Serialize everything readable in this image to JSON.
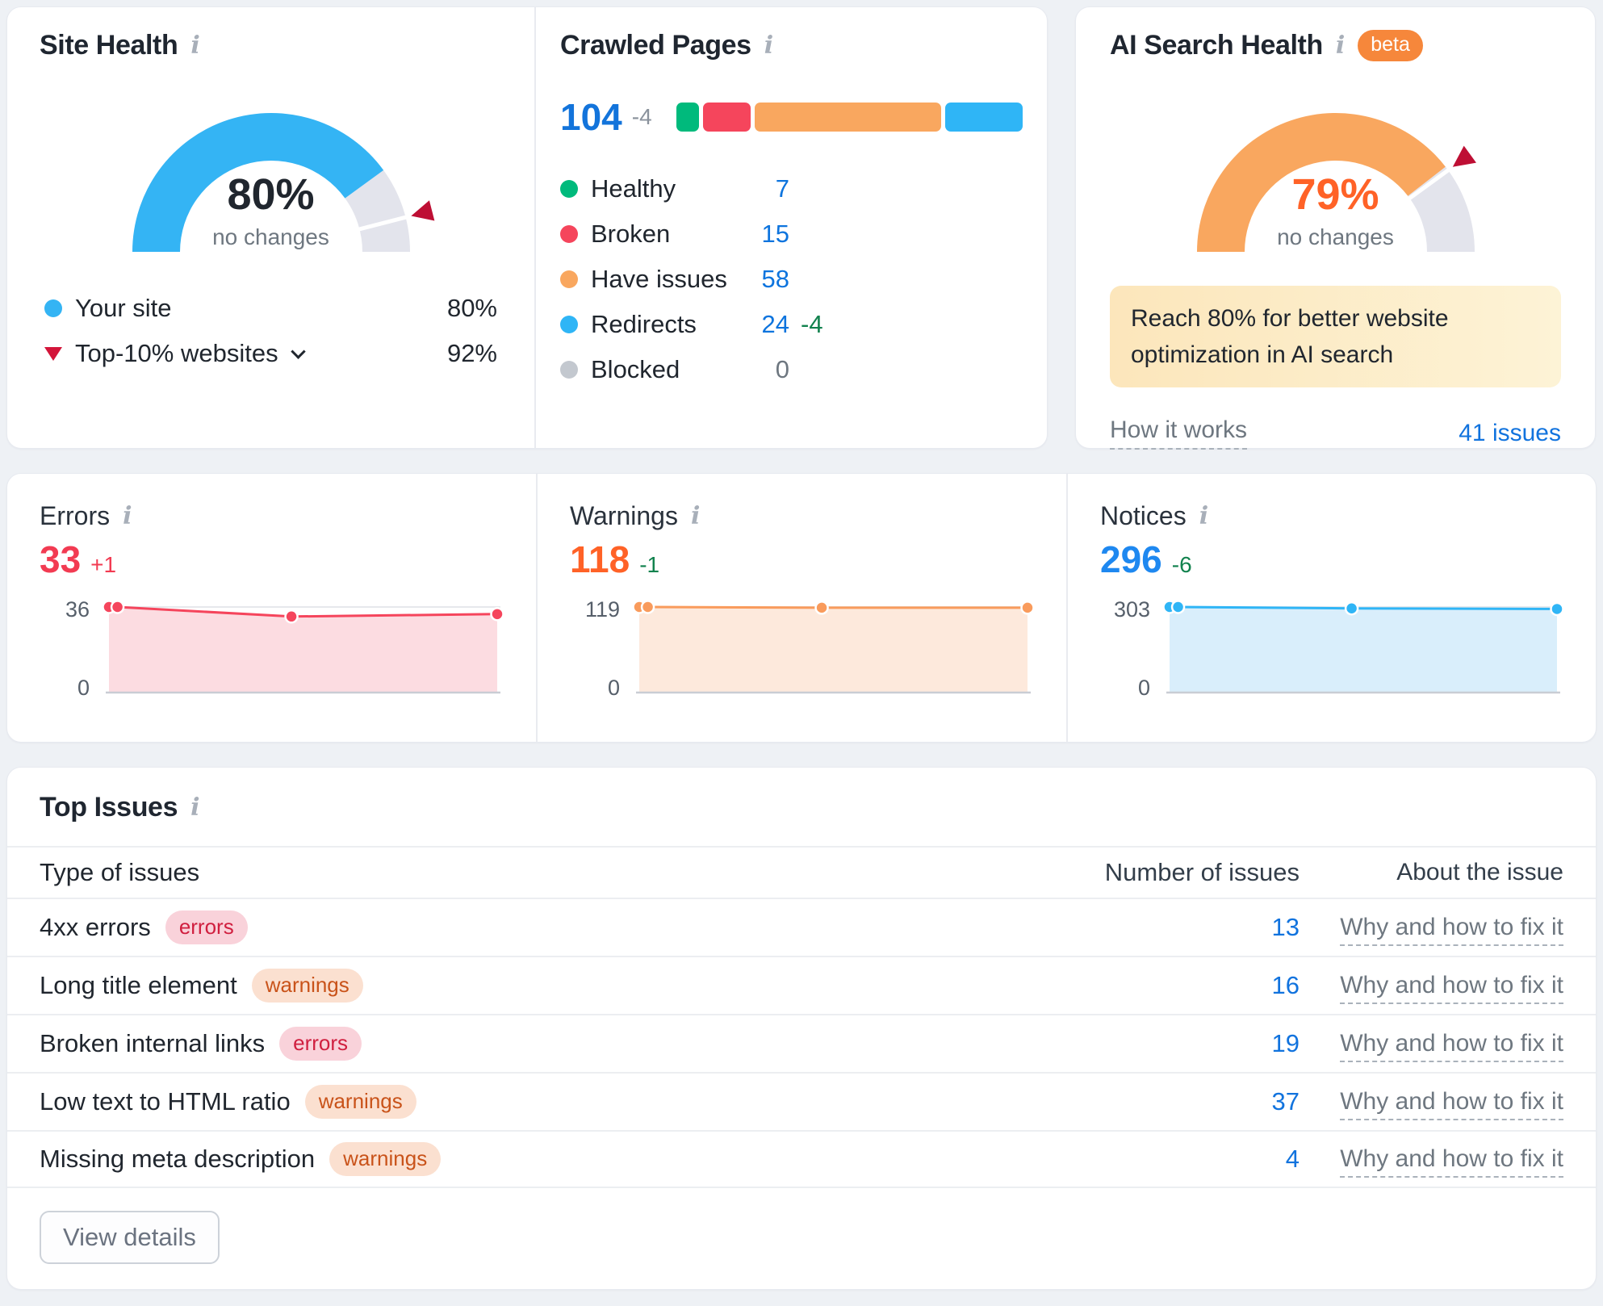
{
  "site_health": {
    "title": "Site Health",
    "score": "80%",
    "change": "no changes",
    "gauge": {
      "value": 80,
      "benchmark": 92,
      "color": "#34B4F4",
      "track": "#E3E4EC",
      "marker_color": "#BE0F34"
    },
    "legend": [
      {
        "label": "Your site",
        "value": "80%"
      },
      {
        "label": "Top-10% websites",
        "value": "92%"
      }
    ]
  },
  "crawled_pages": {
    "title": "Crawled Pages",
    "total": "104",
    "delta": "-4",
    "bar": [
      {
        "name": "Healthy",
        "value": 7,
        "color": "#00BA7C"
      },
      {
        "name": "Broken",
        "value": 15,
        "color": "#F5455C"
      },
      {
        "name": "Have issues",
        "value": 58,
        "color": "#F9A75F"
      },
      {
        "name": "Redirects",
        "value": 24,
        "color": "#2FB5F6"
      }
    ],
    "legend": [
      {
        "label": "Healthy",
        "value": "7",
        "color": "#00BA7C",
        "delta": ""
      },
      {
        "label": "Broken",
        "value": "15",
        "color": "#F5455C",
        "delta": ""
      },
      {
        "label": "Have issues",
        "value": "58",
        "color": "#F9A75F",
        "delta": ""
      },
      {
        "label": "Redirects",
        "value": "24",
        "color": "#2FB5F6",
        "delta": "-4"
      },
      {
        "label": "Blocked",
        "value": "0",
        "color": "#C3C8CF",
        "delta": ""
      }
    ]
  },
  "ai_search_health": {
    "title": "AI Search Health",
    "beta": "beta",
    "score": "79%",
    "change": "no changes",
    "gauge": {
      "value": 79,
      "benchmark": 80,
      "color": "#F9A75F",
      "track": "#E3E4EC",
      "marker_color": "#BE0F34"
    },
    "callout": "Reach 80% for better website optimization in AI search",
    "how_it_works": "How it works",
    "issues_link": "41 issues"
  },
  "errors": {
    "title": "Errors",
    "value": "33",
    "delta": "+1",
    "chart": {
      "type": "area",
      "max_label": "36",
      "min_label": "0",
      "max": 36,
      "x": [
        0,
        0.022,
        0.47,
        1
      ],
      "values": [
        36,
        36,
        32,
        33
      ],
      "line": "#F5455C",
      "fill": "#FCDCE1"
    }
  },
  "warnings": {
    "title": "Warnings",
    "value": "118",
    "delta": "-1",
    "chart": {
      "type": "area",
      "max_label": "119",
      "min_label": "0",
      "max": 119,
      "x": [
        0,
        0.022,
        0.47,
        1
      ],
      "values": [
        119,
        119,
        118,
        118
      ],
      "line": "#F99B5C",
      "fill": "#FDE9DC"
    }
  },
  "notices": {
    "title": "Notices",
    "value": "296",
    "delta": "-6",
    "chart": {
      "type": "area",
      "max_label": "303",
      "min_label": "0",
      "max": 303,
      "x": [
        0,
        0.022,
        0.47,
        1
      ],
      "values": [
        303,
        303,
        298,
        296
      ],
      "line": "#2FB5F6",
      "fill": "#D9EEFB"
    }
  },
  "top_issues": {
    "title": "Top Issues",
    "col_type": "Type of issues",
    "col_number": "Number of issues",
    "col_about": "About the issue",
    "rows": [
      {
        "name": "4xx errors",
        "badge": "errors",
        "badge_class": "badge badge-errors",
        "count": "13",
        "about": "Why and how to fix it"
      },
      {
        "name": "Long title element",
        "badge": "warnings",
        "badge_class": "badge badge-warnings",
        "count": "16",
        "about": "Why and how to fix it"
      },
      {
        "name": "Broken internal links",
        "badge": "errors",
        "badge_class": "badge badge-errors",
        "count": "19",
        "about": "Why and how to fix it"
      },
      {
        "name": "Low text to HTML ratio",
        "badge": "warnings",
        "badge_class": "badge badge-warnings",
        "count": "37",
        "about": "Why and how to fix it"
      },
      {
        "name": "Missing meta description",
        "badge": "warnings",
        "badge_class": "badge badge-warnings",
        "count": "4",
        "about": "Why and how to fix it"
      }
    ],
    "view_details": "View details"
  }
}
